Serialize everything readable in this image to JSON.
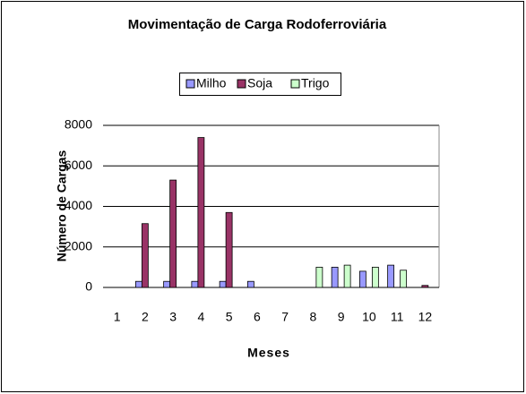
{
  "chart_data": {
    "type": "bar",
    "title": "Movimentação de Carga  Rodoferroviária",
    "x_label": "Meses",
    "y_label": "Número de Cargas",
    "categories": [
      "1",
      "2",
      "3",
      "4",
      "5",
      "6",
      "7",
      "8",
      "9",
      "10",
      "11",
      "12"
    ],
    "series": [
      {
        "name": "Milho",
        "color": "#9999ff",
        "values": [
          0,
          300,
          300,
          300,
          300,
          300,
          0,
          0,
          1000,
          800,
          1100,
          0
        ]
      },
      {
        "name": "Soja",
        "color": "#993366",
        "values": [
          0,
          3150,
          5300,
          7400,
          3700,
          0,
          0,
          0,
          0,
          0,
          0,
          100
        ]
      },
      {
        "name": "Trigo",
        "color": "#ccffcc",
        "values": [
          0,
          0,
          0,
          0,
          0,
          0,
          0,
          1000,
          1100,
          1000,
          850,
          0
        ]
      }
    ],
    "ylim": [
      0,
      8000
    ],
    "yticks": [
      0,
      2000,
      4000,
      6000,
      8000
    ],
    "grid": true,
    "legend": "top"
  }
}
